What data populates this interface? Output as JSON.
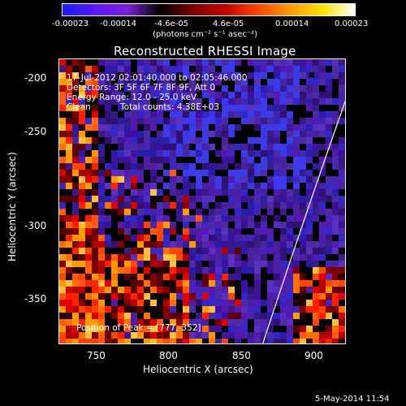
{
  "colorbar": {
    "tick_labels": [
      "-0.00023",
      "-0.00014",
      "-4.6e-05",
      "4.6e-05",
      "0.00014",
      "0.00023"
    ],
    "unit_label": "(photons cm⁻² s⁻¹ asec⁻²)",
    "colors": [
      "#1a1aff",
      "#5a18ff",
      "#7a22d8",
      "#000000",
      "#7a0000",
      "#c40000",
      "#ff4400",
      "#ff9a00",
      "#ffe000",
      "#ffffff"
    ]
  },
  "plot": {
    "title": "Reconstructed RHESSI Image",
    "time_range": "17-Jul-2012 02:01:40.000 to 02:05:46.000",
    "detectors": "Detectors: 3F 5F 6F 7F 8F 9F, Att 0",
    "energy_range": "Energy Range: 12.0 - 25.0 keV",
    "clean_label": "Clean",
    "total_counts": "Total counts: 4.38E+03",
    "peak": "Position of Peak = [777,-352]",
    "xlabel": "Heliocentric X (arcsec)",
    "ylabel": "Heliocentric Y (arcsec)",
    "x_ticks": [
      "750",
      "800",
      "850",
      "900"
    ],
    "y_ticks": [
      "-200",
      "-250",
      "-300",
      "-350"
    ]
  },
  "footer": {
    "date": "5-May-2014 11:54"
  }
}
